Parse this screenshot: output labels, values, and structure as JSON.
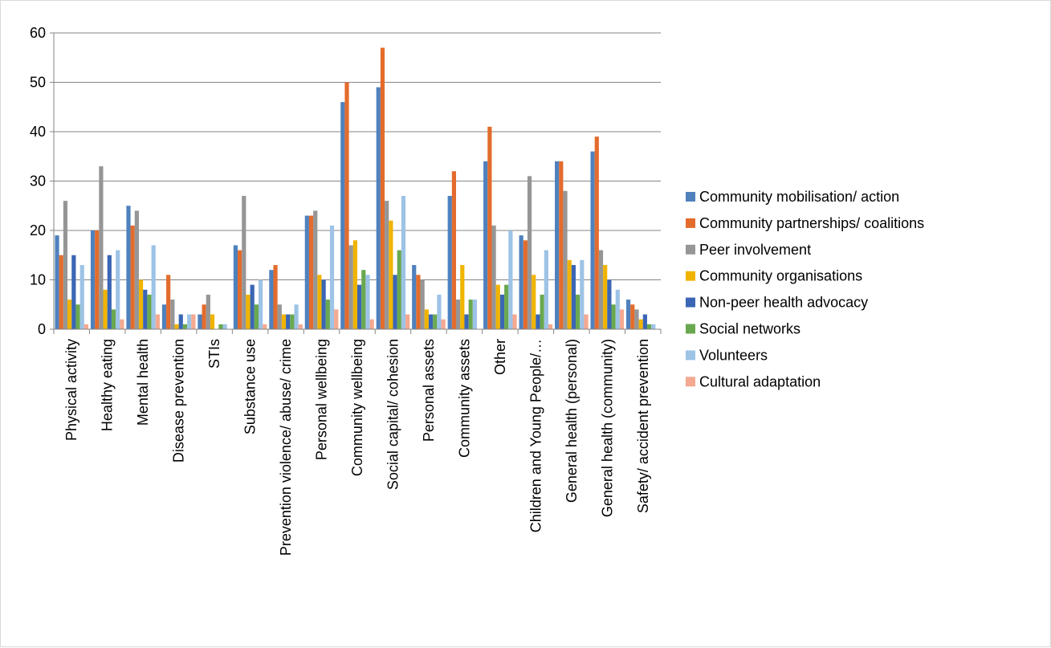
{
  "chart_data": {
    "type": "bar",
    "title": "",
    "xlabel": "",
    "ylabel": "",
    "ylim": [
      0,
      60
    ],
    "yticks": [
      0,
      10,
      20,
      30,
      40,
      50,
      60
    ],
    "grid": "horizontal",
    "legend_position": "right",
    "categories": [
      "Physical activity",
      "Healthy eating",
      "Mental health",
      "Disease prevention",
      "STIs",
      "Substance use",
      "Prevention violence/ abuse/ crime",
      "Personal wellbeing",
      "Community wellbeing",
      "Social capital/ cohesion",
      "Personal assets",
      "Community assets",
      "Other",
      "Children and Young People/…",
      "General health (personal)",
      "General health (community)",
      "Safety/ accident prevention"
    ],
    "series": [
      {
        "name": "Community mobilisation/ action",
        "color": "#4f81bd",
        "values": [
          19,
          20,
          25,
          5,
          3,
          17,
          12,
          23,
          46,
          49,
          13,
          27,
          34,
          19,
          34,
          36,
          6
        ]
      },
      {
        "name": "Community partnerships/ coalitions",
        "color": "#e36c2d",
        "values": [
          15,
          20,
          21,
          11,
          5,
          16,
          13,
          23,
          50,
          57,
          11,
          32,
          41,
          18,
          34,
          39,
          5
        ]
      },
      {
        "name": "Peer involvement",
        "color": "#969696",
        "values": [
          26,
          33,
          24,
          6,
          7,
          27,
          5,
          24,
          17,
          26,
          10,
          6,
          21,
          31,
          28,
          16,
          4
        ]
      },
      {
        "name": "Community organisations",
        "color": "#f0b400",
        "values": [
          6,
          8,
          10,
          1,
          3,
          7,
          3,
          11,
          18,
          22,
          4,
          13,
          9,
          11,
          14,
          13,
          2
        ]
      },
      {
        "name": "Non-peer health advocacy",
        "color": "#3a66b5",
        "values": [
          15,
          15,
          8,
          3,
          0,
          9,
          3,
          10,
          9,
          11,
          3,
          3,
          7,
          3,
          13,
          10,
          3
        ]
      },
      {
        "name": "Social networks",
        "color": "#6aa84f",
        "values": [
          5,
          4,
          7,
          1,
          1,
          5,
          3,
          6,
          12,
          16,
          3,
          6,
          9,
          7,
          7,
          5,
          1
        ]
      },
      {
        "name": "Volunteers",
        "color": "#9dc3e6",
        "values": [
          13,
          16,
          17,
          3,
          1,
          10,
          5,
          21,
          11,
          27,
          7,
          6,
          20,
          16,
          14,
          8,
          1
        ]
      },
      {
        "name": "Cultural adaptation",
        "color": "#f4a990",
        "values": [
          1,
          2,
          3,
          3,
          0,
          1,
          1,
          4,
          2,
          3,
          2,
          0,
          3,
          1,
          3,
          4,
          0
        ]
      }
    ]
  }
}
